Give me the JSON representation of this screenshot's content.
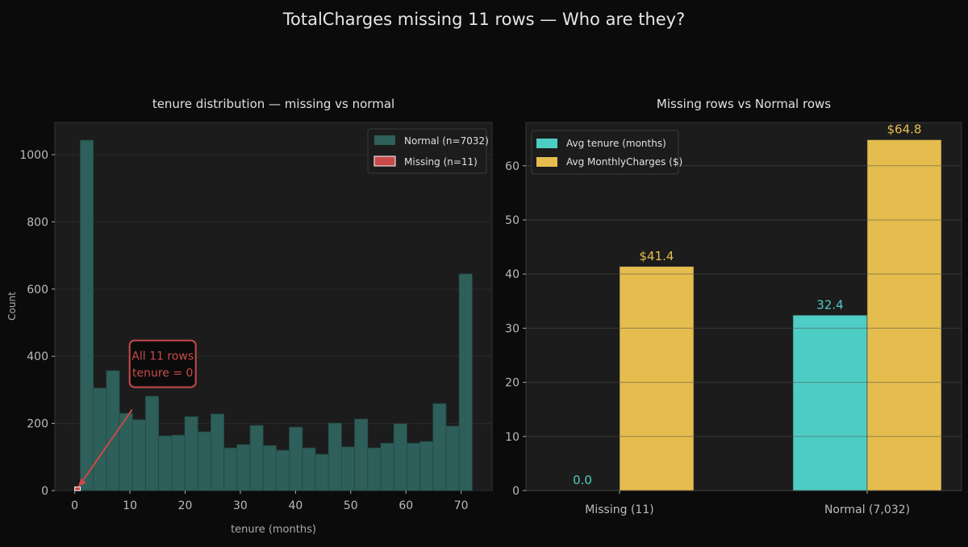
{
  "title": "TotalCharges missing 11 rows — Who are they?",
  "colors": {
    "background": "#0b0b0b",
    "axes": "#1c1c1c",
    "normal": "#2e5f5a",
    "missing": "#c84a4a",
    "tenure": "#4ecdc4",
    "charges": "#e5bd4e",
    "text": "#cfcfcf"
  },
  "chart_data": [
    {
      "type": "bar",
      "title": "tenure distribution — missing vs normal",
      "xlabel": "tenure (months)",
      "ylabel": "Count",
      "xlim": [
        -3.6,
        75.6
      ],
      "ylim": [
        0,
        1096
      ],
      "xticks": [
        0,
        10,
        20,
        30,
        40,
        50,
        60,
        70
      ],
      "yticks": [
        0,
        200,
        400,
        600,
        800,
        1000
      ],
      "grid": true,
      "legend_position": "top-right",
      "series": [
        {
          "name": "Normal (n=7032)",
          "bin_start": 1,
          "bin_end": 72,
          "values": [
            1043,
            305,
            357,
            230,
            211,
            281,
            163,
            165,
            220,
            175,
            228,
            127,
            137,
            194,
            134,
            120,
            189,
            127,
            108,
            201,
            130,
            213,
            127,
            141,
            199,
            141,
            146,
            259,
            192,
            645
          ]
        },
        {
          "name": "Missing (n=11)",
          "bin_start": 0,
          "bin_end": 1,
          "values": [
            11
          ]
        }
      ],
      "annotation": {
        "line1": "All 11 rows",
        "line2": "tenure = 0",
        "points_to": [
          0,
          11
        ],
        "text_at": [
          15.5,
          320
        ]
      }
    },
    {
      "type": "bar",
      "title": "Missing rows vs Normal rows",
      "categories": [
        "Missing (11)",
        "Normal (7,032)"
      ],
      "ylim": [
        0,
        68
      ],
      "yticks": [
        0,
        10,
        20,
        30,
        40,
        50,
        60
      ],
      "grid": true,
      "legend_position": "top-left",
      "series": [
        {
          "name": "Avg tenure (months)",
          "values": [
            0.0,
            32.4
          ],
          "labels": [
            "0.0",
            "32.4"
          ]
        },
        {
          "name": "Avg MonthlyCharges ($)",
          "values": [
            41.4,
            64.8
          ],
          "labels": [
            "$41.4",
            "$64.8"
          ]
        }
      ]
    }
  ]
}
